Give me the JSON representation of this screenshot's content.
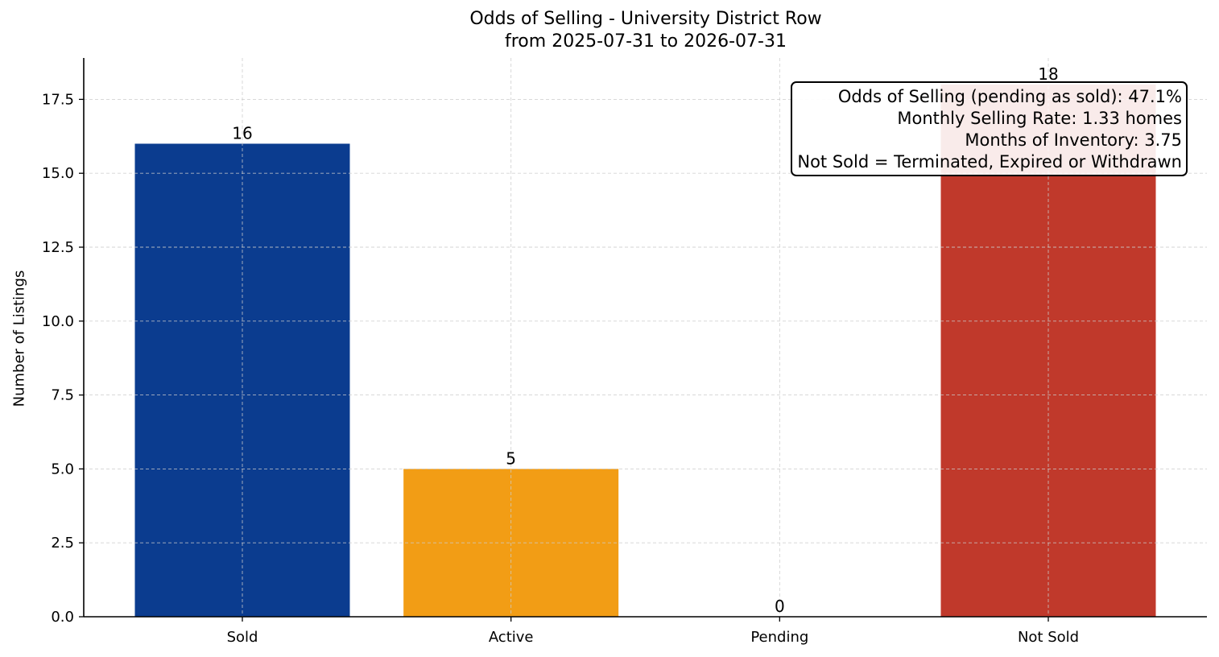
{
  "chart_data": {
    "type": "bar",
    "title": "Odds of Selling - University District Row",
    "subtitle": "from 2025-07-31 to 2026-07-31",
    "xlabel": "",
    "ylabel": "Number of Listings",
    "categories": [
      "Sold",
      "Active",
      "Pending",
      "Not Sold"
    ],
    "values": [
      16,
      5,
      0,
      18
    ],
    "data_labels": [
      "16",
      "5",
      "0",
      "18"
    ],
    "colors": [
      "#0b3c8f",
      "#f29d15",
      "#7f7f7f",
      "#c0392b"
    ],
    "ylim": [
      0,
      18.9
    ],
    "yticks": [
      0.0,
      2.5,
      5.0,
      7.5,
      10.0,
      12.5,
      15.0,
      17.5
    ],
    "ytick_labels": [
      "0.0",
      "2.5",
      "5.0",
      "7.5",
      "10.0",
      "12.5",
      "15.0",
      "17.5"
    ],
    "grid": true,
    "annotation_box": {
      "placement": "top-right",
      "lines": [
        "Odds of Selling (pending as sold): 47.1%",
        "Monthly Selling Rate: 1.33 homes",
        "Months of Inventory: 3.75",
        "Not Sold = Terminated, Expired or Withdrawn"
      ]
    }
  }
}
